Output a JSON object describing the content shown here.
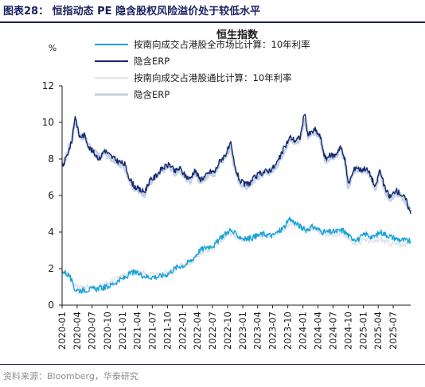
{
  "figure_title": "图表28： 恒指动态 PE 隐含股权风险溢价处于较低水平",
  "source": "资料来源：Bloomberg，华泰研究",
  "chart_data": {
    "type": "line",
    "title": "恒生指数",
    "ylabel": "%",
    "ylim": [
      0,
      12
    ],
    "yticks": [
      0,
      2,
      4,
      6,
      8,
      10,
      12
    ],
    "x_tick_labels": [
      "2020-01",
      "2020-04",
      "2020-07",
      "2020-10",
      "2021-01",
      "2021-04",
      "2021-07",
      "2021-10",
      "2022-01",
      "2022-04",
      "2022-07",
      "2022-10",
      "2023-01",
      "2023-04",
      "2023-07",
      "2023-10",
      "2024-01",
      "2024-04",
      "2024-07",
      "2024-10",
      "2025-01",
      "2025-04",
      "2025-07"
    ],
    "xlim": [
      "2020-01-01",
      "2025-10-15"
    ],
    "grid": false,
    "legend_position": "top",
    "series": [
      {
        "name": "按南向成交占港股全市场比计算：10年利率",
        "color": "#19a3dc",
        "width": 1.4,
        "points": [
          [
            "2020-01-01",
            1.9
          ],
          [
            "2020-02-15",
            1.6
          ],
          [
            "2020-03-15",
            0.9
          ],
          [
            "2020-04-15",
            0.8
          ],
          [
            "2020-06-01",
            0.85
          ],
          [
            "2020-08-01",
            0.9
          ],
          [
            "2020-10-01",
            1.0
          ],
          [
            "2020-12-01",
            1.3
          ],
          [
            "2021-01-15",
            1.5
          ],
          [
            "2021-03-01",
            1.8
          ],
          [
            "2021-04-15",
            1.7
          ],
          [
            "2021-06-01",
            1.55
          ],
          [
            "2021-08-01",
            1.55
          ],
          [
            "2021-10-01",
            1.7
          ],
          [
            "2021-12-01",
            2.1
          ],
          [
            "2022-01-15",
            2.2
          ],
          [
            "2022-03-01",
            2.5
          ],
          [
            "2022-04-15",
            3.0
          ],
          [
            "2022-06-01",
            3.2
          ],
          [
            "2022-07-15",
            3.3
          ],
          [
            "2022-09-01",
            3.8
          ],
          [
            "2022-10-15",
            4.1
          ],
          [
            "2022-12-01",
            3.8
          ],
          [
            "2023-01-15",
            3.6
          ],
          [
            "2023-03-01",
            3.7
          ],
          [
            "2023-05-01",
            3.9
          ],
          [
            "2023-07-01",
            3.8
          ],
          [
            "2023-09-01",
            4.2
          ],
          [
            "2023-10-15",
            4.7
          ],
          [
            "2023-12-01",
            4.4
          ],
          [
            "2024-01-15",
            4.1
          ],
          [
            "2024-03-01",
            4.3
          ],
          [
            "2024-05-01",
            4.0
          ],
          [
            "2024-07-01",
            4.0
          ],
          [
            "2024-09-01",
            4.1
          ],
          [
            "2024-10-15",
            3.7
          ],
          [
            "2024-12-01",
            3.6
          ],
          [
            "2025-01-15",
            3.9
          ],
          [
            "2025-03-01",
            3.7
          ],
          [
            "2025-04-15",
            4.0
          ],
          [
            "2025-06-01",
            3.8
          ],
          [
            "2025-08-01",
            3.6
          ],
          [
            "2025-10-15",
            3.5
          ]
        ]
      },
      {
        "name": "隐含ERP",
        "color": "#14286e",
        "width": 1.4,
        "points": [
          [
            "2020-01-01",
            7.5
          ],
          [
            "2020-02-01",
            8.2
          ],
          [
            "2020-03-01",
            9.0
          ],
          [
            "2020-03-20",
            10.4
          ],
          [
            "2020-04-15",
            9.2
          ],
          [
            "2020-05-15",
            9.3
          ],
          [
            "2020-06-15",
            8.6
          ],
          [
            "2020-07-15",
            8.3
          ],
          [
            "2020-08-15",
            8.0
          ],
          [
            "2020-09-15",
            8.5
          ],
          [
            "2020-10-15",
            8.2
          ],
          [
            "2020-12-01",
            7.9
          ],
          [
            "2021-01-15",
            7.7
          ],
          [
            "2021-02-15",
            6.9
          ],
          [
            "2021-03-15",
            6.5
          ],
          [
            "2021-04-15",
            6.3
          ],
          [
            "2021-05-15",
            6.2
          ],
          [
            "2021-06-15",
            6.8
          ],
          [
            "2021-07-15",
            7.0
          ],
          [
            "2021-09-01",
            7.5
          ],
          [
            "2021-10-15",
            7.7
          ],
          [
            "2021-11-15",
            7.3
          ],
          [
            "2021-12-15",
            7.5
          ],
          [
            "2022-01-15",
            7.1
          ],
          [
            "2022-02-15",
            6.9
          ],
          [
            "2022-03-15",
            7.4
          ],
          [
            "2022-04-15",
            6.9
          ],
          [
            "2022-05-15",
            7.0
          ],
          [
            "2022-06-15",
            7.3
          ],
          [
            "2022-07-15",
            7.3
          ],
          [
            "2022-08-15",
            7.9
          ],
          [
            "2022-09-15",
            8.2
          ],
          [
            "2022-10-20",
            8.8
          ],
          [
            "2022-11-15",
            7.5
          ],
          [
            "2022-12-15",
            6.8
          ],
          [
            "2023-01-15",
            6.6
          ],
          [
            "2023-02-15",
            6.7
          ],
          [
            "2023-03-15",
            7.0
          ],
          [
            "2023-04-15",
            7.2
          ],
          [
            "2023-05-15",
            7.3
          ],
          [
            "2023-06-15",
            7.4
          ],
          [
            "2023-07-15",
            7.6
          ],
          [
            "2023-08-15",
            8.1
          ],
          [
            "2023-09-15",
            8.7
          ],
          [
            "2023-10-15",
            9.2
          ],
          [
            "2023-11-15",
            9.0
          ],
          [
            "2023-12-15",
            9.2
          ],
          [
            "2024-01-10",
            10.5
          ],
          [
            "2024-02-01",
            9.3
          ],
          [
            "2024-03-15",
            9.6
          ],
          [
            "2024-04-15",
            9.2
          ],
          [
            "2024-05-15",
            8.0
          ],
          [
            "2024-06-15",
            8.2
          ],
          [
            "2024-07-15",
            8.2
          ],
          [
            "2024-08-15",
            8.7
          ],
          [
            "2024-09-15",
            7.8
          ],
          [
            "2024-10-01",
            6.6
          ],
          [
            "2024-11-15",
            7.6
          ],
          [
            "2024-12-15",
            7.4
          ],
          [
            "2025-01-15",
            7.5
          ],
          [
            "2025-02-15",
            7.1
          ],
          [
            "2025-03-15",
            6.4
          ],
          [
            "2025-04-10",
            7.4
          ],
          [
            "2025-05-15",
            6.3
          ],
          [
            "2025-06-15",
            5.9
          ],
          [
            "2025-07-15",
            6.3
          ],
          [
            "2025-08-15",
            6.1
          ],
          [
            "2025-09-15",
            5.8
          ],
          [
            "2025-10-15",
            5.0
          ]
        ]
      },
      {
        "name": "按南向成交占港股通比计算：10年利率",
        "color": "#dfe3ea",
        "width": 1.4,
        "points": [
          [
            "2020-01-01",
            1.8
          ],
          [
            "2020-02-15",
            1.6
          ],
          [
            "2020-03-15",
            1.1
          ],
          [
            "2020-04-15",
            1.0
          ],
          [
            "2020-06-01",
            1.0
          ],
          [
            "2020-08-01",
            1.0
          ],
          [
            "2020-10-01",
            1.2
          ],
          [
            "2020-12-01",
            1.5
          ],
          [
            "2021-01-15",
            1.6
          ],
          [
            "2021-03-01",
            1.9
          ],
          [
            "2021-04-15",
            1.8
          ],
          [
            "2021-06-01",
            1.7
          ],
          [
            "2021-08-01",
            1.6
          ],
          [
            "2021-10-01",
            1.8
          ],
          [
            "2021-12-01",
            2.1
          ],
          [
            "2022-01-15",
            2.2
          ],
          [
            "2022-03-01",
            2.4
          ],
          [
            "2022-04-15",
            2.8
          ],
          [
            "2022-06-01",
            3.0
          ],
          [
            "2022-07-15",
            3.2
          ],
          [
            "2022-09-01",
            3.6
          ],
          [
            "2022-10-15",
            3.9
          ],
          [
            "2022-12-01",
            3.7
          ],
          [
            "2023-01-15",
            3.6
          ],
          [
            "2023-03-01",
            3.7
          ],
          [
            "2023-05-01",
            3.8
          ],
          [
            "2023-07-01",
            3.8
          ],
          [
            "2023-09-01",
            4.1
          ],
          [
            "2023-10-15",
            4.5
          ],
          [
            "2023-12-01",
            4.3
          ],
          [
            "2024-01-15",
            4.1
          ],
          [
            "2024-03-01",
            4.2
          ],
          [
            "2024-05-01",
            3.9
          ],
          [
            "2024-07-01",
            3.9
          ],
          [
            "2024-09-01",
            3.9
          ],
          [
            "2024-10-15",
            3.5
          ],
          [
            "2024-12-01",
            3.4
          ],
          [
            "2025-01-15",
            3.6
          ],
          [
            "2025-03-01",
            3.4
          ],
          [
            "2025-04-15",
            3.6
          ],
          [
            "2025-06-01",
            3.4
          ],
          [
            "2025-08-01",
            3.3
          ],
          [
            "2025-10-15",
            3.4
          ]
        ]
      },
      {
        "name": "隐含ERP",
        "color": "#c6d3e6",
        "width": 3.2,
        "points": [
          [
            "2020-01-01",
            7.6
          ],
          [
            "2020-02-01",
            8.3
          ],
          [
            "2020-03-01",
            9.1
          ],
          [
            "2020-03-20",
            10.2
          ],
          [
            "2020-04-15",
            9.3
          ],
          [
            "2020-05-15",
            9.2
          ],
          [
            "2020-06-15",
            8.7
          ],
          [
            "2020-07-15",
            8.4
          ],
          [
            "2020-08-15",
            8.1
          ],
          [
            "2020-09-15",
            8.4
          ],
          [
            "2020-10-15",
            8.1
          ],
          [
            "2020-12-01",
            7.8
          ],
          [
            "2021-01-15",
            7.6
          ],
          [
            "2021-02-15",
            6.8
          ],
          [
            "2021-03-15",
            6.4
          ],
          [
            "2021-04-15",
            6.2
          ],
          [
            "2021-05-15",
            6.1
          ],
          [
            "2021-06-15",
            6.7
          ],
          [
            "2021-07-15",
            6.9
          ],
          [
            "2021-09-01",
            7.4
          ],
          [
            "2021-10-15",
            7.6
          ],
          [
            "2021-11-15",
            7.2
          ],
          [
            "2021-12-15",
            7.4
          ],
          [
            "2022-01-15",
            7.0
          ],
          [
            "2022-02-15",
            6.8
          ],
          [
            "2022-03-15",
            7.3
          ],
          [
            "2022-04-15",
            6.8
          ],
          [
            "2022-05-15",
            6.9
          ],
          [
            "2022-06-15",
            7.2
          ],
          [
            "2022-07-15",
            7.2
          ],
          [
            "2022-08-15",
            7.8
          ],
          [
            "2022-09-15",
            8.1
          ],
          [
            "2022-10-20",
            8.7
          ],
          [
            "2022-11-15",
            7.4
          ],
          [
            "2022-12-15",
            6.7
          ],
          [
            "2023-01-15",
            6.5
          ],
          [
            "2023-02-15",
            6.6
          ],
          [
            "2023-03-15",
            6.9
          ],
          [
            "2023-04-15",
            7.1
          ],
          [
            "2023-05-15",
            7.2
          ],
          [
            "2023-06-15",
            7.3
          ],
          [
            "2023-07-15",
            7.5
          ],
          [
            "2023-08-15",
            8.0
          ],
          [
            "2023-09-15",
            8.6
          ],
          [
            "2023-10-15",
            9.1
          ],
          [
            "2023-11-15",
            8.9
          ],
          [
            "2023-12-15",
            9.1
          ],
          [
            "2024-01-10",
            10.3
          ],
          [
            "2024-02-01",
            9.2
          ],
          [
            "2024-03-15",
            9.5
          ],
          [
            "2024-04-15",
            9.1
          ],
          [
            "2024-05-15",
            7.9
          ],
          [
            "2024-06-15",
            8.1
          ],
          [
            "2024-07-15",
            8.1
          ],
          [
            "2024-08-15",
            8.6
          ],
          [
            "2024-09-15",
            7.7
          ],
          [
            "2024-10-01",
            6.5
          ],
          [
            "2024-11-15",
            7.5
          ],
          [
            "2024-12-15",
            7.3
          ],
          [
            "2025-01-15",
            7.4
          ],
          [
            "2025-02-15",
            7.0
          ],
          [
            "2025-03-15",
            6.3
          ],
          [
            "2025-04-10",
            7.3
          ],
          [
            "2025-05-15",
            6.2
          ],
          [
            "2025-06-15",
            5.8
          ],
          [
            "2025-07-15",
            6.2
          ],
          [
            "2025-08-15",
            6.0
          ],
          [
            "2025-09-15",
            5.7
          ],
          [
            "2025-10-15",
            5.1
          ]
        ]
      }
    ]
  }
}
